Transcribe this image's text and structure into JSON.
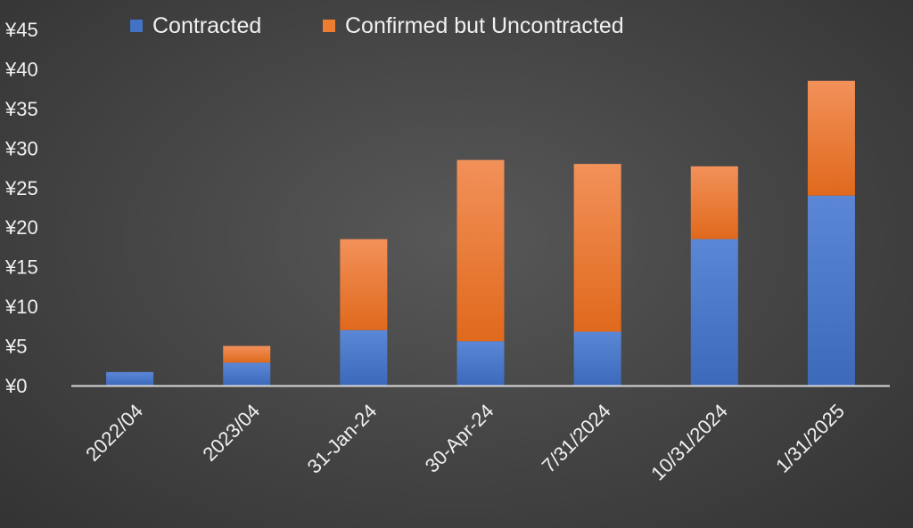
{
  "chart_data": {
    "type": "bar",
    "stacked": true,
    "categories": [
      "2022/04",
      "2023/04",
      "31-Jan-24",
      "30-Apr-24",
      "7/31/2024",
      "10/31/2024",
      "1/31/2025"
    ],
    "series": [
      {
        "name": "Contracted",
        "values": [
          1.7,
          2.9,
          7.0,
          5.6,
          6.8,
          18.5,
          24.0
        ]
      },
      {
        "name": "Confirmed but Uncontracted",
        "values": [
          0.0,
          2.1,
          11.5,
          22.9,
          21.2,
          9.2,
          14.5
        ]
      }
    ],
    "ylim": [
      0,
      45
    ],
    "yticks": [
      "¥0",
      "¥5",
      "¥10",
      "¥15",
      "¥20",
      "¥25",
      "¥30",
      "¥35",
      "¥40",
      "¥45"
    ],
    "title": "",
    "xlabel": "",
    "ylabel": "",
    "legend": "top",
    "grid": false,
    "colors": {
      "series": [
        "#4472C4",
        "#ED7D31"
      ],
      "axis": "#d9d9d9",
      "text": "#f0f0f0"
    }
  }
}
